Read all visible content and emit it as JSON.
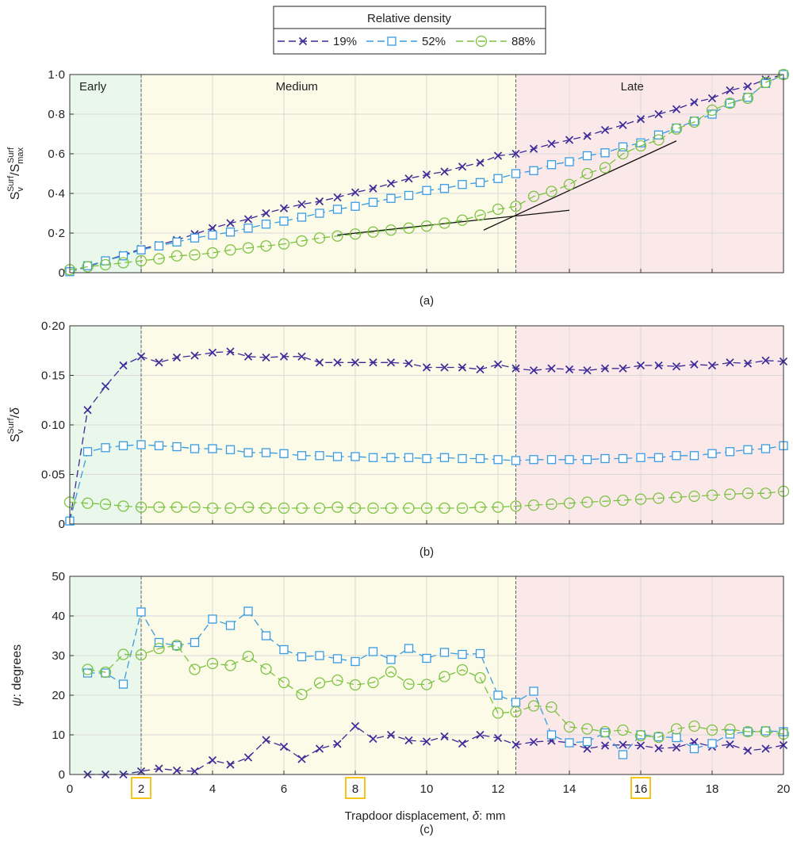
{
  "legend": {
    "title": "Relative density",
    "entries": [
      {
        "label": "19%",
        "marker": "x",
        "color": "#3b2a98"
      },
      {
        "label": "52%",
        "marker": "square",
        "color": "#3a9be0"
      },
      {
        "label": "88%",
        "marker": "circle",
        "color": "#7cc242"
      }
    ]
  },
  "phases": [
    {
      "label": "Early",
      "x0": 0,
      "x1": 2,
      "color": "#eaf8ec"
    },
    {
      "label": "Medium",
      "x0": 2,
      "x1": 12.5,
      "color": "#fbfbe7"
    },
    {
      "label": "Late",
      "x0": 12.5,
      "x1": 20,
      "color": "#fbe9ea"
    }
  ],
  "highlighted_ticks": [
    2,
    8,
    16
  ],
  "highlight_color": "#f5c518",
  "xlabel_text": "Trapdoor displacement, ",
  "xlabel_symbol": "δ",
  "xlabel_unit": ": mm",
  "chart_data": [
    {
      "type": "line",
      "panel_label": "(a)",
      "ylabel": {
        "main": "S",
        "sub": "v",
        "sup": "Surf",
        "div": "/",
        "main2": "S",
        "sub2": "max",
        "sup2": "Surf"
      },
      "xlim": [
        0,
        20
      ],
      "ylim": [
        0,
        1.0
      ],
      "xticks": [
        0,
        2,
        4,
        6,
        8,
        10,
        12,
        14,
        16,
        18,
        20
      ],
      "yticks": [
        0,
        0.2,
        0.4,
        0.6,
        0.8,
        1.0
      ],
      "ytick_labels": [
        "0",
        "0·2",
        "0·4",
        "0·6",
        "0·8",
        "1·0"
      ],
      "grid": true,
      "x": [
        0,
        0.5,
        1,
        1.5,
        2,
        2.5,
        3,
        3.5,
        4,
        4.5,
        5,
        5.5,
        6,
        6.5,
        7,
        7.5,
        8,
        8.5,
        9,
        9.5,
        10,
        10.5,
        11,
        11.5,
        12,
        12.5,
        13,
        13.5,
        14,
        14.5,
        15,
        15.5,
        16,
        16.5,
        17,
        17.5,
        18,
        18.5,
        19,
        19.5,
        20
      ],
      "series": [
        {
          "name": "19%",
          "values": [
            0.005,
            0.03,
            0.06,
            0.09,
            0.12,
            0.14,
            0.165,
            0.195,
            0.225,
            0.25,
            0.27,
            0.3,
            0.325,
            0.345,
            0.36,
            0.38,
            0.405,
            0.425,
            0.45,
            0.475,
            0.495,
            0.51,
            0.535,
            0.555,
            0.59,
            0.6,
            0.625,
            0.65,
            0.67,
            0.69,
            0.72,
            0.745,
            0.775,
            0.8,
            0.825,
            0.86,
            0.88,
            0.92,
            0.94,
            0.975,
            1.0
          ]
        },
        {
          "name": "52%",
          "values": [
            0.005,
            0.035,
            0.06,
            0.085,
            0.115,
            0.135,
            0.155,
            0.175,
            0.19,
            0.205,
            0.225,
            0.245,
            0.26,
            0.28,
            0.3,
            0.32,
            0.335,
            0.355,
            0.375,
            0.39,
            0.415,
            0.425,
            0.445,
            0.455,
            0.475,
            0.5,
            0.515,
            0.545,
            0.56,
            0.59,
            0.605,
            0.635,
            0.655,
            0.695,
            0.73,
            0.765,
            0.8,
            0.855,
            0.885,
            0.955,
            1.0
          ]
        },
        {
          "name": "88%",
          "values": [
            0.015,
            0.03,
            0.04,
            0.05,
            0.06,
            0.07,
            0.085,
            0.09,
            0.1,
            0.115,
            0.125,
            0.135,
            0.145,
            0.16,
            0.175,
            0.185,
            0.195,
            0.205,
            0.215,
            0.225,
            0.235,
            0.25,
            0.265,
            0.29,
            0.32,
            0.335,
            0.385,
            0.41,
            0.445,
            0.5,
            0.53,
            0.6,
            0.64,
            0.67,
            0.725,
            0.76,
            0.82,
            0.855,
            0.88,
            0.96,
            1.0
          ]
        }
      ],
      "annotation_lines": [
        {
          "x": [
            7.5,
            14
          ],
          "y": [
            0.19,
            0.315
          ]
        },
        {
          "x": [
            11.6,
            17
          ],
          "y": [
            0.215,
            0.665
          ]
        }
      ]
    },
    {
      "type": "line",
      "panel_label": "(b)",
      "ylabel": {
        "main": "S",
        "sub": "v",
        "sup": "Surf",
        "div": "/",
        "symbol": "δ"
      },
      "xlim": [
        0,
        20
      ],
      "ylim": [
        0,
        0.2
      ],
      "xticks": [
        0,
        2,
        4,
        6,
        8,
        10,
        12,
        14,
        16,
        18,
        20
      ],
      "yticks": [
        0,
        0.05,
        0.1,
        0.15,
        0.2
      ],
      "ytick_labels": [
        "0",
        "0·05",
        "0·10",
        "0·15",
        "0·20"
      ],
      "grid": true,
      "x": [
        0,
        0.5,
        1,
        1.5,
        2,
        2.5,
        3,
        3.5,
        4,
        4.5,
        5,
        5.5,
        6,
        6.5,
        7,
        7.5,
        8,
        8.5,
        9,
        9.5,
        10,
        10.5,
        11,
        11.5,
        12,
        12.5,
        13,
        13.5,
        14,
        14.5,
        15,
        15.5,
        16,
        16.5,
        17,
        17.5,
        18,
        18.5,
        19,
        19.5,
        20
      ],
      "series": [
        {
          "name": "19%",
          "values": [
            0.003,
            0.115,
            0.139,
            0.16,
            0.169,
            0.163,
            0.168,
            0.17,
            0.173,
            0.174,
            0.169,
            0.168,
            0.169,
            0.169,
            0.163,
            0.163,
            0.163,
            0.163,
            0.163,
            0.162,
            0.158,
            0.158,
            0.158,
            0.156,
            0.161,
            0.157,
            0.155,
            0.157,
            0.156,
            0.155,
            0.157,
            0.157,
            0.16,
            0.16,
            0.159,
            0.161,
            0.16,
            0.163,
            0.162,
            0.165,
            0.164
          ]
        },
        {
          "name": "52%",
          "values": [
            0.003,
            0.073,
            0.077,
            0.079,
            0.08,
            0.079,
            0.078,
            0.076,
            0.076,
            0.075,
            0.072,
            0.072,
            0.071,
            0.069,
            0.069,
            0.068,
            0.068,
            0.067,
            0.067,
            0.067,
            0.066,
            0.067,
            0.066,
            0.066,
            0.065,
            0.064,
            0.065,
            0.065,
            0.065,
            0.065,
            0.066,
            0.066,
            0.067,
            0.067,
            0.069,
            0.069,
            0.071,
            0.073,
            0.075,
            0.076,
            0.079
          ]
        },
        {
          "name": "88%",
          "values": [
            0.022,
            0.021,
            0.02,
            0.018,
            0.017,
            0.017,
            0.017,
            0.017,
            0.016,
            0.016,
            0.017,
            0.016,
            0.016,
            0.016,
            0.016,
            0.017,
            0.016,
            0.016,
            0.016,
            0.016,
            0.016,
            0.016,
            0.016,
            0.017,
            0.017,
            0.018,
            0.019,
            0.02,
            0.021,
            0.022,
            0.023,
            0.024,
            0.025,
            0.026,
            0.027,
            0.028,
            0.029,
            0.03,
            0.031,
            0.031,
            0.033
          ]
        }
      ]
    },
    {
      "type": "line",
      "panel_label": "(c)",
      "ylabel": {
        "symbol": "ψ",
        "text": ": degrees"
      },
      "xlim": [
        0,
        20
      ],
      "ylim": [
        0,
        50
      ],
      "xticks": [
        0,
        2,
        4,
        6,
        8,
        10,
        12,
        14,
        16,
        18,
        20
      ],
      "yticks": [
        0,
        10,
        20,
        30,
        40,
        50
      ],
      "ytick_labels": [
        "0",
        "10",
        "20",
        "30",
        "40",
        "50"
      ],
      "grid": true,
      "x": [
        0.5,
        1,
        1.5,
        2,
        2.5,
        3,
        3.5,
        4,
        4.5,
        5,
        5.5,
        6,
        6.5,
        7,
        7.5,
        8,
        8.5,
        9,
        9.5,
        10,
        10.5,
        11,
        11.5,
        12,
        12.5,
        13,
        13.5,
        14,
        14.5,
        15,
        15.5,
        16,
        16.5,
        17,
        17.5,
        18,
        18.5,
        19,
        19.5,
        20
      ],
      "series": [
        {
          "name": "19%",
          "values": [
            0,
            0,
            0,
            0.8,
            1.5,
            1,
            0.8,
            3.6,
            2.5,
            4.3,
            8.7,
            7,
            3.9,
            6.5,
            7.7,
            12.2,
            9,
            10,
            8.6,
            8.3,
            9.6,
            7.8,
            10,
            9.2,
            7.5,
            8.2,
            8.5,
            8,
            6.5,
            7.3,
            7.5,
            7.3,
            6.6,
            6.8,
            8.2,
            7,
            7.6,
            6,
            6.5,
            7.4
          ]
        },
        {
          "name": "52%",
          "values": [
            25.6,
            25.6,
            22.8,
            41,
            33.3,
            32.5,
            33.3,
            39.2,
            37.6,
            41.2,
            35,
            31.5,
            29.7,
            30,
            29.2,
            28.5,
            31,
            29,
            31.8,
            29.3,
            30.8,
            30.3,
            30.5,
            20,
            18.2,
            21,
            10,
            8,
            8.3,
            10.5,
            5,
            10,
            9.5,
            9.3,
            6.5,
            7.8,
            10.2,
            10.8,
            11,
            10.8
          ]
        },
        {
          "name": "88%",
          "values": [
            26.5,
            25.8,
            30.3,
            30.2,
            31.8,
            32.6,
            26.5,
            28,
            27.5,
            29.8,
            26.6,
            23.2,
            20.2,
            23.1,
            23.8,
            22.6,
            23.2,
            25.9,
            22.8,
            22.7,
            24.7,
            26.4,
            24.4,
            15.5,
            15.8,
            17.3,
            17,
            12,
            11.5,
            10.8,
            11.2,
            9.8,
            9.4,
            11.5,
            12.2,
            11.2,
            11.4,
            10.8,
            10.8,
            10.2
          ]
        }
      ]
    }
  ]
}
